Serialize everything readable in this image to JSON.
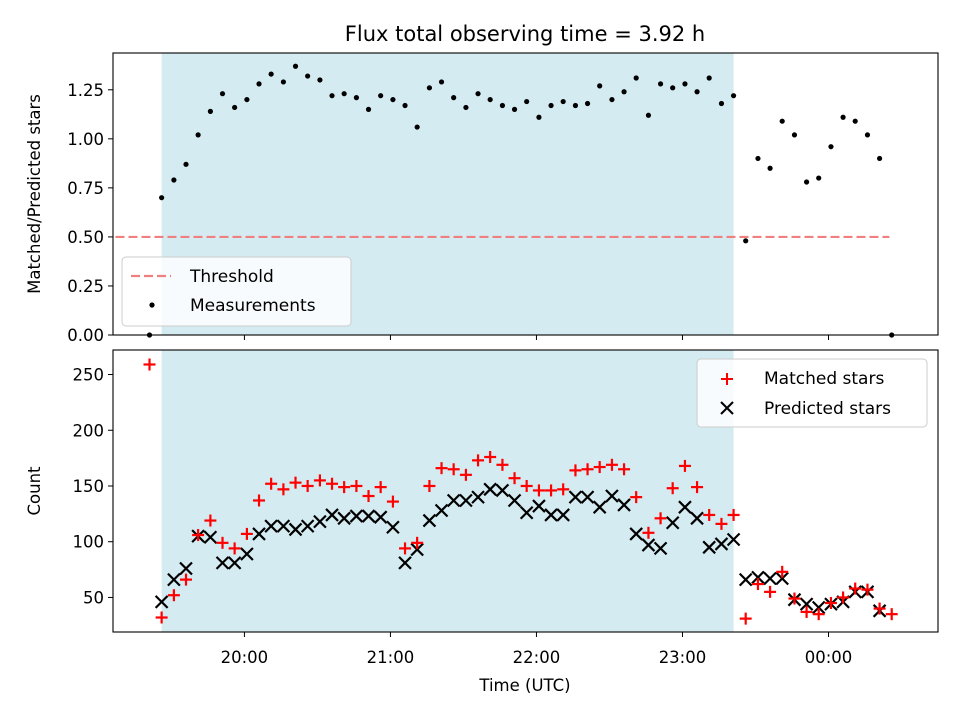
{
  "title": "Flux total observing time = 3.92 h",
  "colors": {
    "shade": "#d4ebf2",
    "threshold": "#f08080",
    "measurement": "#000000",
    "matched": "#ff0000",
    "predicted": "#000000"
  },
  "chart_data": [
    {
      "type": "scatter",
      "panel": "top",
      "ylabel": "Matched/Predicted stars",
      "xlabel": "",
      "xlim": [
        19.1,
        24.75
      ],
      "ylim": [
        0,
        1.4375
      ],
      "yticks": [
        "0.00",
        "0.25",
        "0.50",
        "0.75",
        "1.00",
        "1.25"
      ],
      "shaded_span": [
        19.433,
        23.35
      ],
      "grid": false,
      "legend": "lower-left",
      "legend_entries": {
        "threshold": "Threshold",
        "measurements": "Measurements"
      },
      "threshold": {
        "value": 0.5,
        "x": [
          19.117,
          24.417
        ]
      },
      "measurements": {
        "x": [
          19.35,
          19.433,
          19.517,
          19.6,
          19.683,
          19.767,
          19.85,
          19.933,
          20.017,
          20.1,
          20.183,
          20.267,
          20.35,
          20.433,
          20.517,
          20.6,
          20.683,
          20.767,
          20.85,
          20.933,
          21.017,
          21.1,
          21.183,
          21.267,
          21.35,
          21.433,
          21.517,
          21.6,
          21.683,
          21.767,
          21.85,
          21.933,
          22.017,
          22.1,
          22.183,
          22.267,
          22.35,
          22.433,
          22.517,
          22.6,
          22.683,
          22.767,
          22.85,
          22.933,
          23.017,
          23.1,
          23.183,
          23.267,
          23.35,
          23.433,
          23.517,
          23.6,
          23.683,
          23.767,
          23.85,
          23.933,
          24.017,
          24.1,
          24.183,
          24.267,
          24.35,
          24.433
        ],
        "y": [
          0.0,
          0.7,
          0.79,
          0.87,
          1.02,
          1.14,
          1.23,
          1.16,
          1.2,
          1.28,
          1.33,
          1.29,
          1.37,
          1.32,
          1.3,
          1.22,
          1.23,
          1.21,
          1.15,
          1.22,
          1.2,
          1.17,
          1.06,
          1.26,
          1.29,
          1.21,
          1.16,
          1.23,
          1.2,
          1.17,
          1.15,
          1.19,
          1.11,
          1.17,
          1.19,
          1.17,
          1.18,
          1.27,
          1.2,
          1.24,
          1.31,
          1.12,
          1.28,
          1.26,
          1.28,
          1.24,
          1.31,
          1.18,
          1.22,
          0.48,
          0.9,
          0.85,
          1.09,
          1.02,
          0.78,
          0.8,
          0.96,
          1.11,
          1.09,
          1.02,
          0.9,
          0.0
        ]
      }
    },
    {
      "type": "scatter",
      "panel": "bottom",
      "ylabel": "Count",
      "xlabel": "Time (UTC)",
      "xlim": [
        19.1,
        24.75
      ],
      "ylim": [
        19,
        272
      ],
      "yticks": [
        "50",
        "100",
        "150",
        "200",
        "250"
      ],
      "xticks": [
        {
          "value": 20,
          "label": "20:00"
        },
        {
          "value": 21,
          "label": "21:00"
        },
        {
          "value": 22,
          "label": "22:00"
        },
        {
          "value": 23,
          "label": "23:00"
        },
        {
          "value": 24,
          "label": "00:00"
        }
      ],
      "shaded_span": [
        19.433,
        23.35
      ],
      "grid": false,
      "legend": "top-right",
      "series": [
        {
          "name": "Matched stars",
          "marker": "plus",
          "x": [
            19.35,
            19.433,
            19.517,
            19.6,
            19.683,
            19.767,
            19.85,
            19.933,
            20.017,
            20.1,
            20.183,
            20.267,
            20.35,
            20.433,
            20.517,
            20.6,
            20.683,
            20.767,
            20.85,
            20.933,
            21.017,
            21.1,
            21.183,
            21.267,
            21.35,
            21.433,
            21.517,
            21.6,
            21.683,
            21.767,
            21.85,
            21.933,
            22.017,
            22.1,
            22.183,
            22.267,
            22.35,
            22.433,
            22.517,
            22.6,
            22.683,
            22.767,
            22.85,
            22.933,
            23.017,
            23.1,
            23.183,
            23.267,
            23.35,
            23.433,
            23.517,
            23.6,
            23.683,
            23.767,
            23.85,
            23.933,
            24.017,
            24.1,
            24.183,
            24.267,
            24.35,
            24.433
          ],
          "y": [
            259,
            32,
            52,
            66,
            106,
            119,
            99,
            94,
            107,
            137,
            152,
            147,
            153,
            150,
            155,
            152,
            149,
            150,
            141,
            149,
            136,
            94,
            99,
            150,
            166,
            165,
            160,
            173,
            176,
            169,
            157,
            150,
            146,
            146,
            147,
            164,
            165,
            167,
            169,
            165,
            140,
            108,
            121,
            148,
            168,
            149,
            124,
            116,
            124,
            31,
            62,
            55,
            73,
            49,
            37,
            35,
            45,
            50,
            58,
            57,
            40,
            35
          ]
        },
        {
          "name": "Predicted stars",
          "marker": "x",
          "x": [
            19.433,
            19.517,
            19.6,
            19.683,
            19.767,
            19.85,
            19.933,
            20.017,
            20.1,
            20.183,
            20.267,
            20.35,
            20.433,
            20.517,
            20.6,
            20.683,
            20.767,
            20.85,
            20.933,
            21.017,
            21.1,
            21.183,
            21.267,
            21.35,
            21.433,
            21.517,
            21.6,
            21.683,
            21.767,
            21.85,
            21.933,
            22.017,
            22.1,
            22.183,
            22.267,
            22.35,
            22.433,
            22.517,
            22.6,
            22.683,
            22.767,
            22.85,
            22.933,
            23.017,
            23.1,
            23.183,
            23.267,
            23.35,
            23.433,
            23.517,
            23.6,
            23.683,
            23.767,
            23.85,
            23.933,
            24.017,
            24.1,
            24.183,
            24.267,
            24.35
          ],
          "y": [
            46,
            66,
            76,
            105,
            104,
            81,
            81,
            89,
            107,
            114,
            114,
            111,
            114,
            118,
            124,
            121,
            123,
            123,
            122,
            113,
            81,
            93,
            119,
            128,
            137,
            137,
            140,
            147,
            146,
            137,
            126,
            132,
            124,
            124,
            140,
            140,
            131,
            141,
            133,
            107,
            97,
            94,
            117,
            131,
            121,
            95,
            98,
            102,
            66,
            68,
            67,
            67,
            48,
            44,
            41,
            44,
            46,
            55,
            55,
            38
          ]
        }
      ]
    }
  ]
}
